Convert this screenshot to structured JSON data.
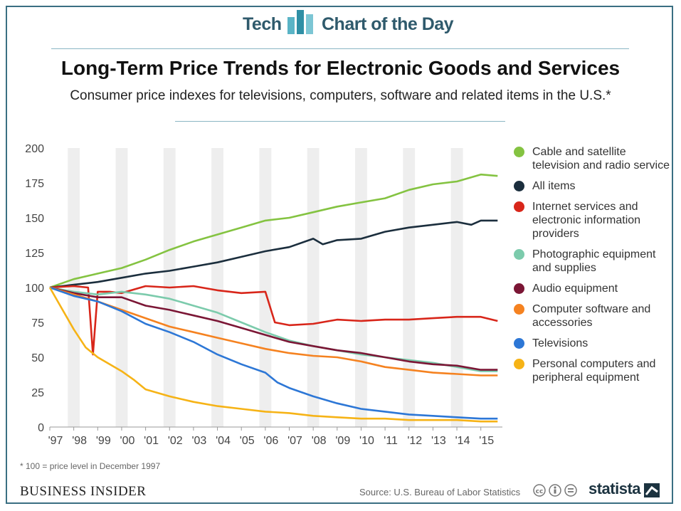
{
  "header": {
    "left_label": "Tech",
    "right_label": "Chart of the Day"
  },
  "title": "Long-Term Price Trends for Electronic Goods and Services",
  "subtitle": "Consumer price indexes for televisions, computers, software and related items in the U.S.*",
  "footnote": "* 100 = price level in December 1997",
  "brand": "BUSINESS INSIDER",
  "source": "Source: U.S. Bureau of Labor Statistics",
  "statista": "statista",
  "colors": {
    "frame": "#3a6f82",
    "band": "#eeeeee"
  },
  "chart_data": {
    "type": "line",
    "title": "Long-Term Price Trends for Electronic Goods and Services",
    "xlabel": "",
    "ylabel": "",
    "xlim": [
      1997,
      2015.9
    ],
    "ylim": [
      0,
      200
    ],
    "yticks": [
      0,
      25,
      50,
      75,
      100,
      125,
      150,
      175,
      200
    ],
    "xticks": [
      {
        "label": "'97",
        "x": 1997
      },
      {
        "label": "'98",
        "x": 1998
      },
      {
        "label": "'99",
        "x": 1999
      },
      {
        "label": "'00",
        "x": 2000
      },
      {
        "label": "'01",
        "x": 2001
      },
      {
        "label": "'02",
        "x": 2002
      },
      {
        "label": "'03",
        "x": 2003
      },
      {
        "label": "'04",
        "x": 2004
      },
      {
        "label": "'05",
        "x": 2005
      },
      {
        "label": "'06",
        "x": 2006
      },
      {
        "label": "'07",
        "x": 2007
      },
      {
        "label": "'08",
        "x": 2008
      },
      {
        "label": "'09",
        "x": 2009
      },
      {
        "label": "'10",
        "x": 2010
      },
      {
        "label": "'11",
        "x": 2011
      },
      {
        "label": "'12",
        "x": 2012
      },
      {
        "label": "'13",
        "x": 2013
      },
      {
        "label": "'14",
        "x": 2014
      },
      {
        "label": "'15",
        "x": 2015
      }
    ],
    "grid": false,
    "legend_position": "right",
    "series": [
      {
        "name": "Cable and satellite television and radio service",
        "color": "#84c341",
        "points": [
          [
            1997,
            100
          ],
          [
            1998,
            106
          ],
          [
            1999,
            110
          ],
          [
            2000,
            114
          ],
          [
            2001,
            120
          ],
          [
            2002,
            127
          ],
          [
            2003,
            133
          ],
          [
            2004,
            138
          ],
          [
            2005,
            143
          ],
          [
            2006,
            148
          ],
          [
            2007,
            150
          ],
          [
            2008,
            154
          ],
          [
            2009,
            158
          ],
          [
            2010,
            161
          ],
          [
            2011,
            164
          ],
          [
            2012,
            170
          ],
          [
            2013,
            174
          ],
          [
            2014,
            176
          ],
          [
            2015,
            181
          ],
          [
            2015.7,
            180
          ]
        ]
      },
      {
        "name": "All items",
        "color": "#1b2e3d",
        "points": [
          [
            1997,
            100
          ],
          [
            1998,
            102
          ],
          [
            1999,
            104
          ],
          [
            2000,
            107
          ],
          [
            2001,
            110
          ],
          [
            2002,
            112
          ],
          [
            2003,
            115
          ],
          [
            2004,
            118
          ],
          [
            2005,
            122
          ],
          [
            2006,
            126
          ],
          [
            2007,
            129
          ],
          [
            2008,
            135
          ],
          [
            2008.4,
            131
          ],
          [
            2009,
            134
          ],
          [
            2010,
            135
          ],
          [
            2011,
            140
          ],
          [
            2012,
            143
          ],
          [
            2013,
            145
          ],
          [
            2014,
            147
          ],
          [
            2014.6,
            145
          ],
          [
            2015,
            148
          ],
          [
            2015.7,
            148
          ]
        ]
      },
      {
        "name": "Internet services and electronic information providers",
        "color": "#d8261a",
        "points": [
          [
            1997,
            100
          ],
          [
            1998,
            101
          ],
          [
            1998.6,
            100
          ],
          [
            1998.8,
            52
          ],
          [
            1999,
            97
          ],
          [
            1999.5,
            97
          ],
          [
            2000,
            96
          ],
          [
            2001,
            101
          ],
          [
            2002,
            100
          ],
          [
            2003,
            101
          ],
          [
            2004,
            98
          ],
          [
            2005,
            96
          ],
          [
            2006,
            97
          ],
          [
            2006.4,
            75
          ],
          [
            2007,
            73
          ],
          [
            2008,
            74
          ],
          [
            2009,
            77
          ],
          [
            2010,
            76
          ],
          [
            2011,
            77
          ],
          [
            2012,
            77
          ],
          [
            2013,
            78
          ],
          [
            2014,
            79
          ],
          [
            2015,
            79
          ],
          [
            2015.7,
            76
          ]
        ]
      },
      {
        "name": "Photographic equipment and supplies",
        "color": "#7ccbac",
        "points": [
          [
            1997,
            100
          ],
          [
            1998,
            97
          ],
          [
            1999,
            95
          ],
          [
            2000,
            97
          ],
          [
            2001,
            95
          ],
          [
            2002,
            92
          ],
          [
            2003,
            87
          ],
          [
            2004,
            82
          ],
          [
            2005,
            75
          ],
          [
            2006,
            68
          ],
          [
            2007,
            62
          ],
          [
            2008,
            58
          ],
          [
            2009,
            55
          ],
          [
            2010,
            52
          ],
          [
            2011,
            50
          ],
          [
            2012,
            48
          ],
          [
            2013,
            46
          ],
          [
            2014,
            43
          ],
          [
            2015,
            40
          ],
          [
            2015.7,
            40
          ]
        ]
      },
      {
        "name": "Audio equipment",
        "color": "#7b1635",
        "points": [
          [
            1997,
            100
          ],
          [
            1998,
            96
          ],
          [
            1999,
            93
          ],
          [
            2000,
            93
          ],
          [
            2001,
            87
          ],
          [
            2002,
            84
          ],
          [
            2003,
            80
          ],
          [
            2004,
            76
          ],
          [
            2005,
            71
          ],
          [
            2006,
            66
          ],
          [
            2007,
            61
          ],
          [
            2008,
            58
          ],
          [
            2009,
            55
          ],
          [
            2010,
            53
          ],
          [
            2011,
            50
          ],
          [
            2012,
            47
          ],
          [
            2013,
            45
          ],
          [
            2014,
            44
          ],
          [
            2015,
            41
          ],
          [
            2015.7,
            41
          ]
        ]
      },
      {
        "name": "Computer software and accessories",
        "color": "#f58220",
        "points": [
          [
            1997,
            100
          ],
          [
            1998,
            95
          ],
          [
            1999,
            90
          ],
          [
            2000,
            84
          ],
          [
            2001,
            78
          ],
          [
            2002,
            72
          ],
          [
            2003,
            68
          ],
          [
            2004,
            64
          ],
          [
            2005,
            60
          ],
          [
            2006,
            56
          ],
          [
            2007,
            53
          ],
          [
            2008,
            51
          ],
          [
            2009,
            50
          ],
          [
            2010,
            47
          ],
          [
            2011,
            43
          ],
          [
            2012,
            41
          ],
          [
            2013,
            39
          ],
          [
            2014,
            38
          ],
          [
            2015,
            37
          ],
          [
            2015.7,
            37
          ]
        ]
      },
      {
        "name": "Televisions",
        "color": "#2d77d6",
        "points": [
          [
            1997,
            100
          ],
          [
            1998,
            94
          ],
          [
            1999,
            90
          ],
          [
            2000,
            83
          ],
          [
            2001,
            74
          ],
          [
            2002,
            68
          ],
          [
            2003,
            61
          ],
          [
            2004,
            52
          ],
          [
            2005,
            45
          ],
          [
            2006,
            39
          ],
          [
            2006.5,
            32
          ],
          [
            2007,
            28
          ],
          [
            2008,
            22
          ],
          [
            2009,
            17
          ],
          [
            2010,
            13
          ],
          [
            2011,
            11
          ],
          [
            2012,
            9
          ],
          [
            2013,
            8
          ],
          [
            2014,
            7
          ],
          [
            2015,
            6
          ],
          [
            2015.7,
            6
          ]
        ]
      },
      {
        "name": "Personal computers and peripheral equipment",
        "color": "#f6b316",
        "points": [
          [
            1997,
            100
          ],
          [
            1997.5,
            85
          ],
          [
            1998,
            70
          ],
          [
            1998.5,
            57
          ],
          [
            1999,
            50
          ],
          [
            2000,
            40
          ],
          [
            2000.5,
            34
          ],
          [
            2001,
            27
          ],
          [
            2002,
            22
          ],
          [
            2003,
            18
          ],
          [
            2004,
            15
          ],
          [
            2005,
            13
          ],
          [
            2006,
            11
          ],
          [
            2007,
            10
          ],
          [
            2008,
            8
          ],
          [
            2009,
            7
          ],
          [
            2010,
            6
          ],
          [
            2011,
            6
          ],
          [
            2012,
            5
          ],
          [
            2013,
            5
          ],
          [
            2014,
            5
          ],
          [
            2015,
            4
          ],
          [
            2015.7,
            4
          ]
        ]
      }
    ]
  }
}
